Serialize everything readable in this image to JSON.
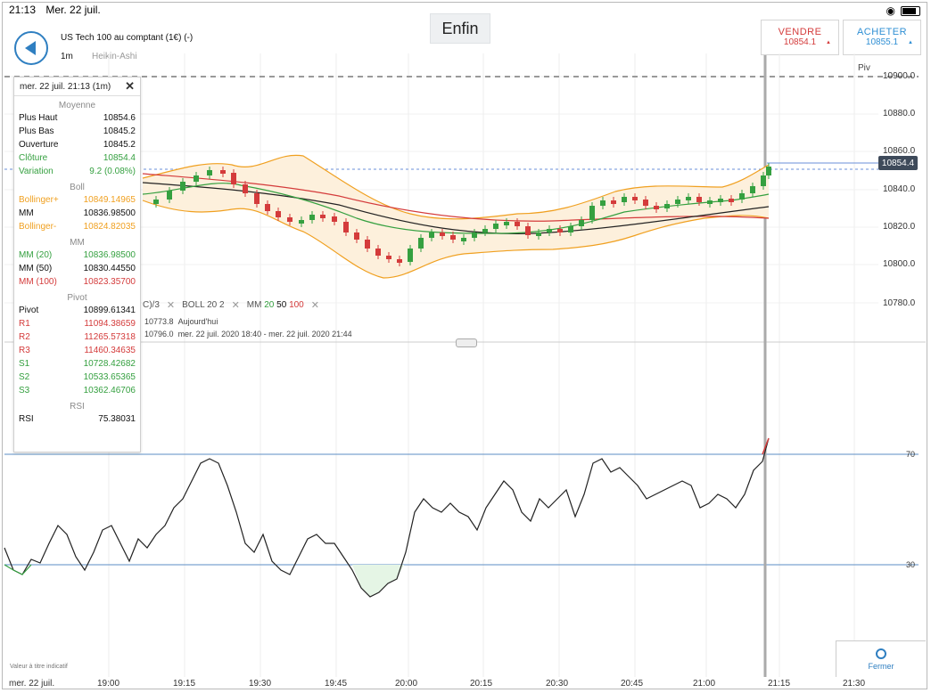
{
  "statusbar": {
    "time": "21:13",
    "date": "Mer. 22 juil."
  },
  "toolbar": {
    "center_label": "Enfin"
  },
  "instrument": {
    "title": "US Tech 100 au comptant (1€) (-)",
    "timeframe": "1m",
    "chart_type": "Heikin-Ashi"
  },
  "trade": {
    "sell_label": "VENDRE",
    "sell_price": "10854.1",
    "buy_label": "ACHETER",
    "buy_price": "10855.1"
  },
  "price_axis": {
    "labels": [
      "10900.0",
      "10880.0",
      "10860.0",
      "10840.0",
      "10820.0",
      "10800.0",
      "10780.0"
    ],
    "current": "10854.4",
    "pivot_label": "Piv"
  },
  "info": {
    "header": "mer. 22 juil. 21:13 (1m)",
    "moyenne_title": "Moyenne",
    "moyenne": [
      {
        "label": "Plus Haut",
        "value": "10854.6",
        "color": "black"
      },
      {
        "label": "Plus Bas",
        "value": "10845.2",
        "color": "black"
      },
      {
        "label": "Ouverture",
        "value": "10845.2",
        "color": "black"
      },
      {
        "label": "Clôture",
        "value": "10854.4",
        "color": "green"
      },
      {
        "label": "Variation",
        "value": "9.2 (0.08%)",
        "color": "green"
      }
    ],
    "boll_title": "Boll",
    "boll": [
      {
        "label": "Bollinger+",
        "value": "10849.14965",
        "color": "orange"
      },
      {
        "label": "MM",
        "value": "10836.98500",
        "color": "black"
      },
      {
        "label": "Bollinger-",
        "value": "10824.82035",
        "color": "orange"
      }
    ],
    "mm_title": "MM",
    "mm": [
      {
        "label": "MM (20)",
        "value": "10836.98500",
        "color": "green"
      },
      {
        "label": "MM (50)",
        "value": "10830.44550",
        "color": "black"
      },
      {
        "label": "MM (100)",
        "value": "10823.35700",
        "color": "red"
      }
    ],
    "pivot_title": "Pivot",
    "pivot": [
      {
        "label": "Pivot",
        "value": "10899.61341",
        "color": "black"
      },
      {
        "label": "R1",
        "value": "11094.38659",
        "color": "red"
      },
      {
        "label": "R2",
        "value": "11265.57318",
        "color": "red"
      },
      {
        "label": "R3",
        "value": "11460.34635",
        "color": "red"
      },
      {
        "label": "S1",
        "value": "10728.42682",
        "color": "green"
      },
      {
        "label": "S2",
        "value": "10533.65365",
        "color": "green"
      },
      {
        "label": "S3",
        "value": "10362.46706",
        "color": "green"
      }
    ],
    "rsi_title": "RSI",
    "rsi": [
      {
        "label": "RSI",
        "value": "75.38031",
        "color": "black"
      }
    ]
  },
  "legend": {
    "ind1": "C)/3",
    "boll_label": "BOLL",
    "boll_p1": "20",
    "boll_p2": "2",
    "mm_label": "MM",
    "mm_p1": "20",
    "mm_p2": "50",
    "mm_p3": "100",
    "line1_value": "10773.8",
    "line1_text": "Aujourd'hui",
    "line2_value": "10796.0",
    "line2_text": "mer. 22 juil. 2020 18:40 - mer. 22 juil. 2020 21:44"
  },
  "rsi_axis": {
    "upper": "70",
    "lower": "30"
  },
  "time_axis": {
    "date": "mer. 22 juil.",
    "ticks": [
      "19:00",
      "19:15",
      "19:30",
      "19:45",
      "20:00",
      "20:15",
      "20:30",
      "20:45",
      "21:00",
      "21:15",
      "21:30"
    ]
  },
  "footer": {
    "disclaimer": "Valeur à titre indicatif",
    "fermer": "Fermer"
  },
  "colors": {
    "up": "#35a040",
    "down": "#d43b3b",
    "boll": "#f0a020",
    "mm20": "#35a040",
    "mm50": "#222222",
    "mm100": "#d43b3b",
    "accent": "#2f7fc1"
  }
}
